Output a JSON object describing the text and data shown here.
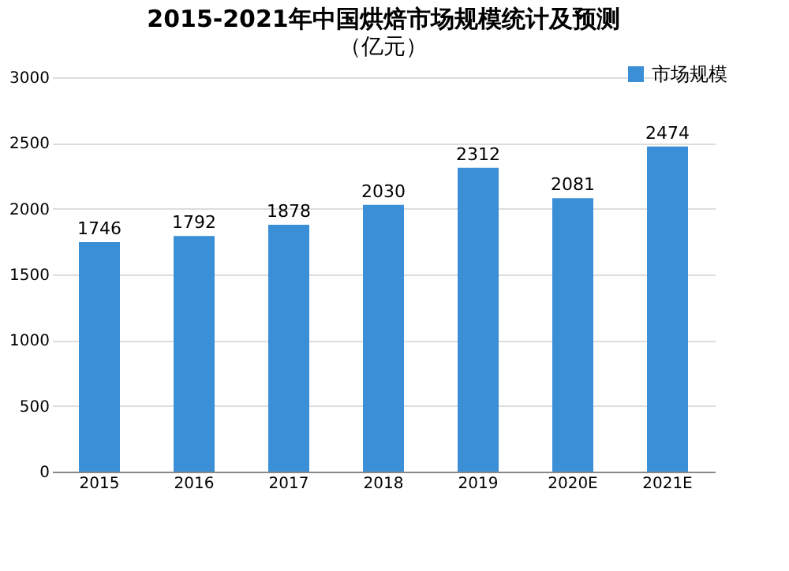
{
  "chart_data": {
    "type": "bar",
    "title": "2015-2021年中国烘焙市场规模统计及预测",
    "subtitle": "（亿元）",
    "categories": [
      "2015",
      "2016",
      "2017",
      "2018",
      "2019",
      "2020E",
      "2021E"
    ],
    "series": [
      {
        "name": "市场规模",
        "color": "#3a8fd6",
        "values": [
          1746,
          1792,
          1878,
          2030,
          2312,
          2081,
          2474
        ]
      }
    ],
    "ylim": [
      0,
      3000
    ],
    "yticks": [
      0,
      500,
      1000,
      1500,
      2000,
      2500,
      3000
    ],
    "grid": "y",
    "legend": "top right",
    "data_labels": true
  }
}
